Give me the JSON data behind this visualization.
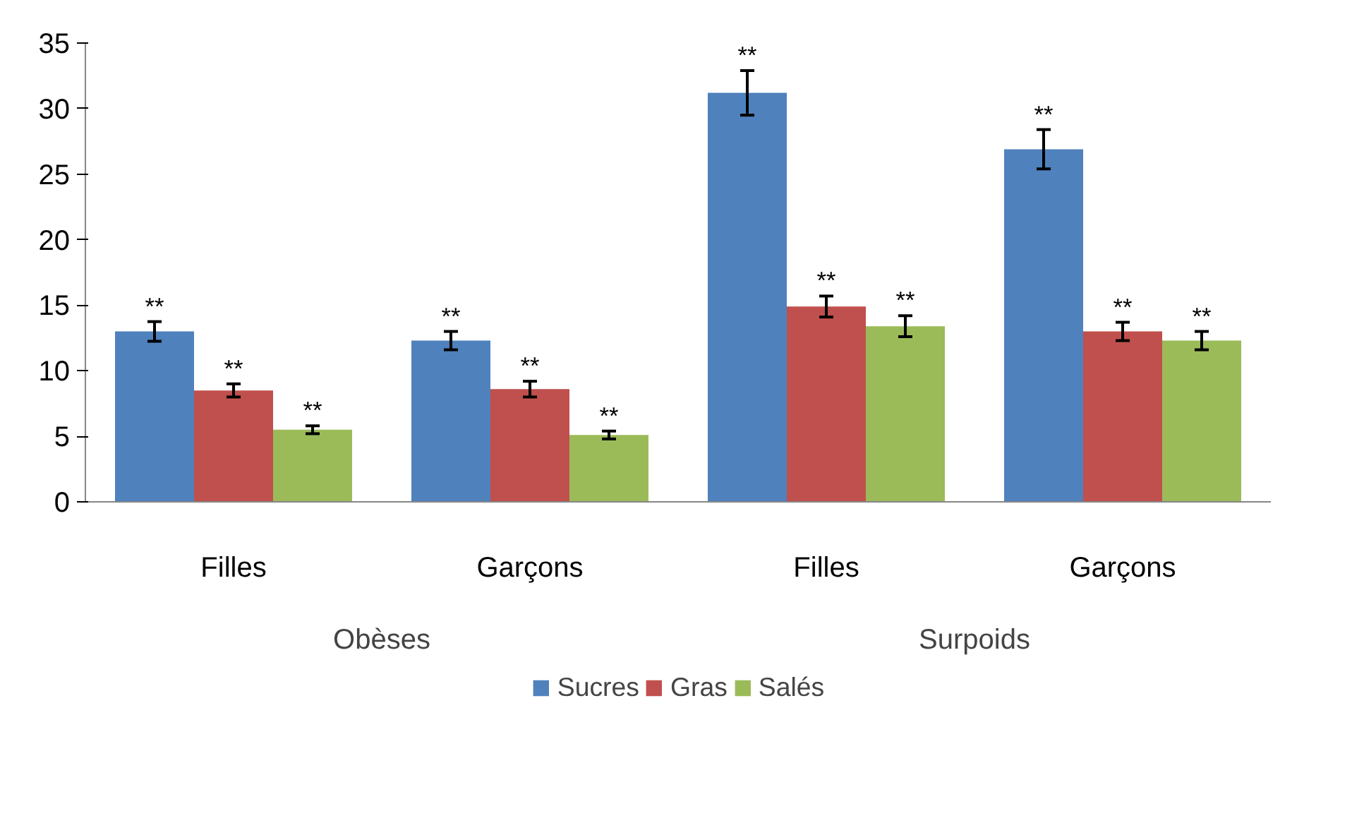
{
  "chart_data": {
    "type": "bar",
    "categories": [
      "Filles",
      "Garçons",
      "Filles",
      "Garçons"
    ],
    "annotations": [
      "Obèses",
      "Surpoids"
    ],
    "ylim": [
      0,
      35
    ],
    "yticks": [
      0,
      5,
      10,
      15,
      20,
      25,
      30,
      35
    ],
    "grid": false,
    "legend": "bottom",
    "series": [
      {
        "name": "Sucres",
        "color": "#4f81bd",
        "values": [
          13.0,
          12.3,
          31.2,
          26.9
        ],
        "errors": [
          0.75,
          0.7,
          1.7,
          1.5
        ],
        "value_labels": [
          "**",
          "**",
          "**",
          "**"
        ]
      },
      {
        "name": "Gras",
        "color": "#c0504d",
        "values": [
          8.5,
          8.6,
          14.9,
          13.0
        ],
        "errors": [
          0.5,
          0.6,
          0.8,
          0.7
        ],
        "value_labels": [
          "**",
          "**",
          "**",
          "**"
        ]
      },
      {
        "name": "Salés",
        "color": "#9bbb59",
        "values": [
          5.5,
          5.1,
          13.4,
          12.3
        ],
        "errors": [
          0.3,
          0.3,
          0.8,
          0.7
        ],
        "value_labels": [
          "**",
          "**",
          "**",
          "**"
        ]
      }
    ]
  }
}
